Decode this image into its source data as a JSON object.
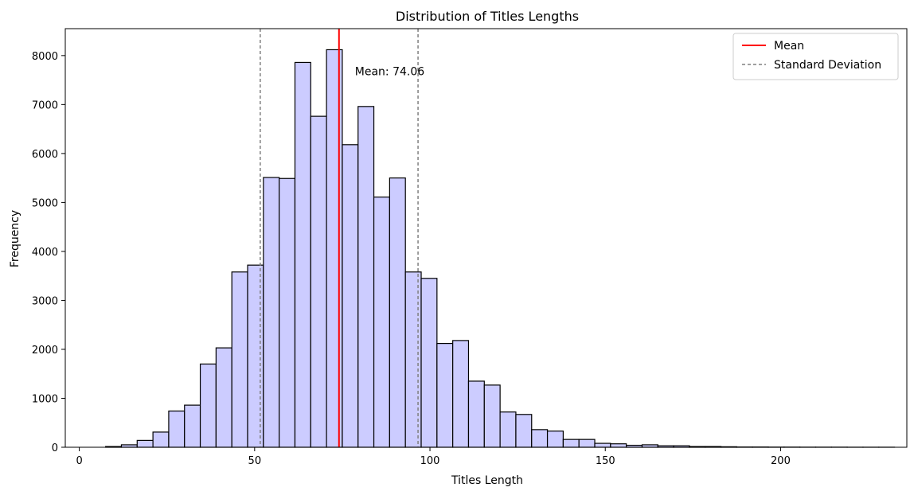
{
  "chart_data": {
    "type": "bar",
    "title": "Distribution of Titles Lengths",
    "xlabel": "Titles Length",
    "ylabel": "Frequency",
    "xlim": [
      -4,
      236
    ],
    "ylim": [
      0,
      8550
    ],
    "xticks": [
      0,
      50,
      100,
      150,
      200
    ],
    "yticks": [
      0,
      1000,
      2000,
      3000,
      4000,
      5000,
      6000,
      7000,
      8000
    ],
    "bin_width": 4.5,
    "bin_edges_start": 7.5,
    "values": [
      15,
      50,
      140,
      310,
      740,
      860,
      1700,
      2030,
      3580,
      3720,
      5510,
      5490,
      7860,
      6760,
      8120,
      6180,
      6960,
      5110,
      5500,
      3580,
      3450,
      2120,
      2180,
      1350,
      1270,
      720,
      670,
      360,
      330,
      160,
      160,
      80,
      70,
      40,
      50,
      30,
      30,
      15,
      15,
      10,
      5,
      5,
      3,
      3,
      2,
      2,
      2,
      1,
      1,
      1
    ],
    "bar_fill": "#ccccff",
    "bar_edge": "#000000",
    "mean": 74.06,
    "mean_label": "Mean: 74.06",
    "mean_color": "#ff0000",
    "std_lines": [
      51.6,
      96.6
    ],
    "std_color": "#808080",
    "legend": {
      "position": "top-right",
      "entries": [
        {
          "label": "Mean",
          "color": "#ff0000",
          "style": "solid"
        },
        {
          "label": "Standard Deviation",
          "color": "#808080",
          "style": "dashed"
        }
      ]
    },
    "grid": false
  }
}
